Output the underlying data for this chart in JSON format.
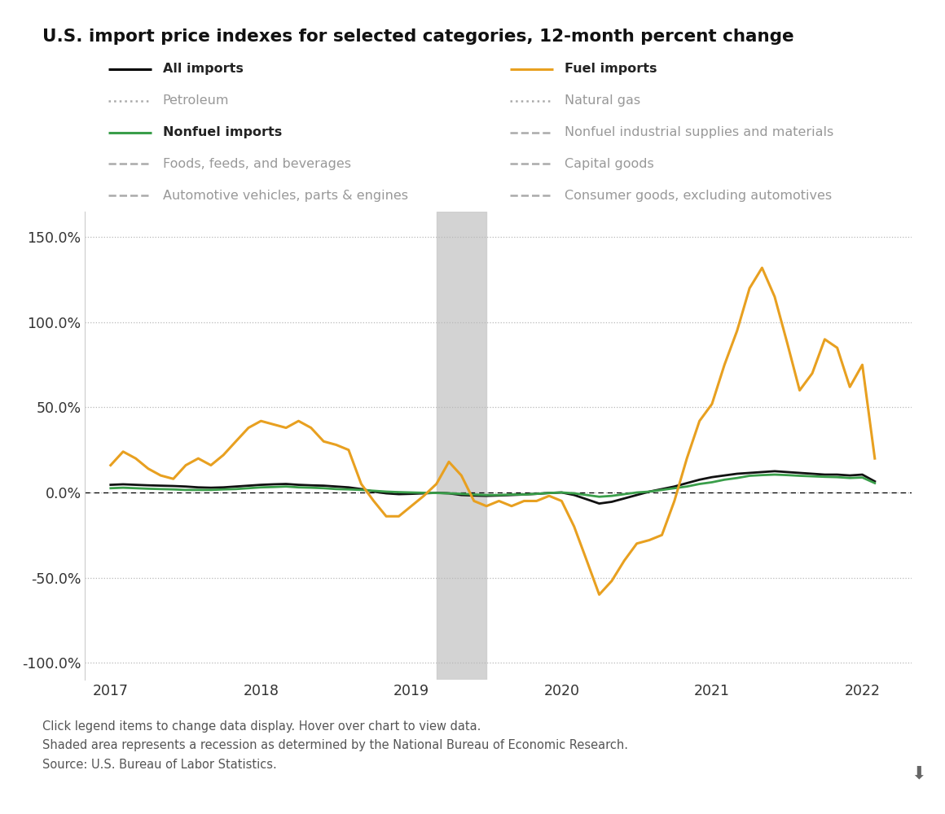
{
  "title": "U.S. import price indexes for selected categories, 12-month percent change",
  "footnotes": [
    "Click legend items to change data display. Hover over chart to view data.",
    "Shaded area represents a recession as determined by the National Bureau of Economic Research.",
    "Source: U.S. Bureau of Labor Statistics."
  ],
  "recession_start": 2019.17,
  "recession_end": 2019.5,
  "ylim": [
    -110,
    165
  ],
  "yticks": [
    -100,
    -50,
    0,
    50,
    100,
    150
  ],
  "xlim": [
    2016.83,
    2022.33
  ],
  "xticks": [
    2017,
    2018,
    2019,
    2020,
    2021,
    2022
  ],
  "background_color": "#ffffff",
  "grid_color": "#b8b8b8",
  "all_imports_x": [
    2017.0,
    2017.083,
    2017.167,
    2017.25,
    2017.333,
    2017.417,
    2017.5,
    2017.583,
    2017.667,
    2017.75,
    2017.833,
    2017.917,
    2018.0,
    2018.083,
    2018.167,
    2018.25,
    2018.333,
    2018.417,
    2018.5,
    2018.583,
    2018.667,
    2018.75,
    2018.833,
    2018.917,
    2019.0,
    2019.083,
    2019.167,
    2019.25,
    2019.333,
    2019.417,
    2019.5,
    2019.583,
    2019.667,
    2019.75,
    2019.833,
    2019.917,
    2020.0,
    2020.083,
    2020.167,
    2020.25,
    2020.333,
    2020.417,
    2020.5,
    2020.583,
    2020.667,
    2020.75,
    2020.833,
    2020.917,
    2021.0,
    2021.083,
    2021.167,
    2021.25,
    2021.333,
    2021.417,
    2021.5,
    2021.583,
    2021.667,
    2021.75,
    2021.833,
    2021.917,
    2022.0,
    2022.083
  ],
  "all_imports_y": [
    4.5,
    4.8,
    4.5,
    4.2,
    4.0,
    3.8,
    3.5,
    3.0,
    2.8,
    3.0,
    3.5,
    4.0,
    4.5,
    4.8,
    5.0,
    4.5,
    4.2,
    4.0,
    3.5,
    3.0,
    2.0,
    0.5,
    -0.5,
    -1.0,
    -0.8,
    -0.5,
    -0.2,
    -0.5,
    -1.5,
    -1.8,
    -2.0,
    -1.8,
    -1.5,
    -1.2,
    -0.8,
    -0.3,
    0.0,
    -1.5,
    -4.0,
    -6.5,
    -5.5,
    -3.5,
    -1.5,
    0.5,
    2.0,
    3.5,
    5.5,
    7.5,
    9.0,
    10.0,
    11.0,
    11.5,
    12.0,
    12.5,
    12.0,
    11.5,
    11.0,
    10.5,
    10.5,
    10.0,
    10.5,
    6.5
  ],
  "fuel_imports_x": [
    2017.0,
    2017.083,
    2017.167,
    2017.25,
    2017.333,
    2017.417,
    2017.5,
    2017.583,
    2017.667,
    2017.75,
    2017.833,
    2017.917,
    2018.0,
    2018.083,
    2018.167,
    2018.25,
    2018.333,
    2018.417,
    2018.5,
    2018.583,
    2018.667,
    2018.75,
    2018.833,
    2018.917,
    2019.0,
    2019.083,
    2019.167,
    2019.25,
    2019.333,
    2019.417,
    2019.5,
    2019.583,
    2019.667,
    2019.75,
    2019.833,
    2019.917,
    2020.0,
    2020.083,
    2020.167,
    2020.25,
    2020.333,
    2020.417,
    2020.5,
    2020.583,
    2020.667,
    2020.75,
    2020.833,
    2020.917,
    2021.0,
    2021.083,
    2021.167,
    2021.25,
    2021.333,
    2021.417,
    2021.5,
    2021.583,
    2021.667,
    2021.75,
    2021.833,
    2021.917,
    2022.0,
    2022.083
  ],
  "fuel_imports_y": [
    16.0,
    24.0,
    20.0,
    14.0,
    10.0,
    8.0,
    16.0,
    20.0,
    16.0,
    22.0,
    30.0,
    38.0,
    42.0,
    40.0,
    38.0,
    42.0,
    38.0,
    30.0,
    28.0,
    25.0,
    5.0,
    -5.0,
    -14.0,
    -14.0,
    -8.0,
    -2.0,
    5.0,
    18.0,
    10.0,
    -5.0,
    -8.0,
    -5.0,
    -8.0,
    -5.0,
    -5.0,
    -2.0,
    -5.0,
    -20.0,
    -40.0,
    -60.0,
    -52.0,
    -40.0,
    -30.0,
    -28.0,
    -25.0,
    -5.0,
    20.0,
    42.0,
    52.0,
    75.0,
    95.0,
    120.0,
    132.0,
    115.0,
    88.0,
    60.0,
    70.0,
    90.0,
    85.0,
    62.0,
    75.0,
    20.0
  ],
  "nonfuel_imports_x": [
    2017.0,
    2017.083,
    2017.167,
    2017.25,
    2017.333,
    2017.417,
    2017.5,
    2017.583,
    2017.667,
    2017.75,
    2017.833,
    2017.917,
    2018.0,
    2018.083,
    2018.167,
    2018.25,
    2018.333,
    2018.417,
    2018.5,
    2018.583,
    2018.667,
    2018.75,
    2018.833,
    2018.917,
    2019.0,
    2019.083,
    2019.167,
    2019.25,
    2019.333,
    2019.417,
    2019.5,
    2019.583,
    2019.667,
    2019.75,
    2019.833,
    2019.917,
    2020.0,
    2020.083,
    2020.167,
    2020.25,
    2020.333,
    2020.417,
    2020.5,
    2020.583,
    2020.667,
    2020.75,
    2020.833,
    2020.917,
    2021.0,
    2021.083,
    2021.167,
    2021.25,
    2021.333,
    2021.417,
    2021.5,
    2021.583,
    2021.667,
    2021.75,
    2021.833,
    2021.917,
    2022.0,
    2022.083
  ],
  "nonfuel_imports_y": [
    2.5,
    2.8,
    2.5,
    2.2,
    2.0,
    1.8,
    1.5,
    1.5,
    1.5,
    1.8,
    2.0,
    2.5,
    3.0,
    3.2,
    3.5,
    3.0,
    2.8,
    2.5,
    2.0,
    1.8,
    1.5,
    1.0,
    0.5,
    0.2,
    0.0,
    -0.2,
    -0.3,
    -0.5,
    -0.8,
    -1.2,
    -1.5,
    -1.5,
    -1.2,
    -1.2,
    -0.8,
    -0.3,
    0.0,
    -0.5,
    -1.5,
    -2.5,
    -2.0,
    -1.0,
    0.0,
    0.5,
    1.5,
    2.5,
    3.5,
    5.0,
    6.0,
    7.5,
    8.5,
    9.8,
    10.2,
    10.5,
    10.2,
    9.8,
    9.5,
    9.2,
    9.0,
    8.5,
    8.8,
    5.5
  ],
  "legend_entries": [
    {
      "label": "All imports",
      "color": "#000000",
      "linestyle": "solid",
      "linewidth": 2.2,
      "bold": true,
      "col": 0,
      "row": 0
    },
    {
      "label": "Fuel imports",
      "color": "#e8a020",
      "linestyle": "solid",
      "linewidth": 2.2,
      "bold": true,
      "col": 1,
      "row": 0
    },
    {
      "label": "Petroleum",
      "color": "#aaaaaa",
      "linestyle": "dotted",
      "linewidth": 1.8,
      "bold": false,
      "col": 0,
      "row": 1
    },
    {
      "label": "Natural gas",
      "color": "#aaaaaa",
      "linestyle": "dotted",
      "linewidth": 1.8,
      "bold": false,
      "col": 1,
      "row": 1
    },
    {
      "label": "Nonfuel imports",
      "color": "#3a9e4a",
      "linestyle": "solid",
      "linewidth": 2.2,
      "bold": true,
      "col": 0,
      "row": 2
    },
    {
      "label": "Nonfuel industrial supplies and materials",
      "color": "#aaaaaa",
      "linestyle": "dashed",
      "linewidth": 1.8,
      "bold": false,
      "col": 1,
      "row": 2
    },
    {
      "label": "Foods, feeds, and beverages",
      "color": "#aaaaaa",
      "linestyle": "dashed",
      "linewidth": 1.8,
      "bold": false,
      "col": 0,
      "row": 3
    },
    {
      "label": "Capital goods",
      "color": "#aaaaaa",
      "linestyle": "dashed",
      "linewidth": 1.8,
      "bold": false,
      "col": 1,
      "row": 3
    },
    {
      "label": "Automotive vehicles, parts & engines",
      "color": "#aaaaaa",
      "linestyle": "dashed",
      "linewidth": 1.8,
      "bold": false,
      "col": 0,
      "row": 4
    },
    {
      "label": "Consumer goods, excluding automotives",
      "color": "#aaaaaa",
      "linestyle": "dashed",
      "linewidth": 1.8,
      "bold": false,
      "col": 1,
      "row": 4
    }
  ]
}
